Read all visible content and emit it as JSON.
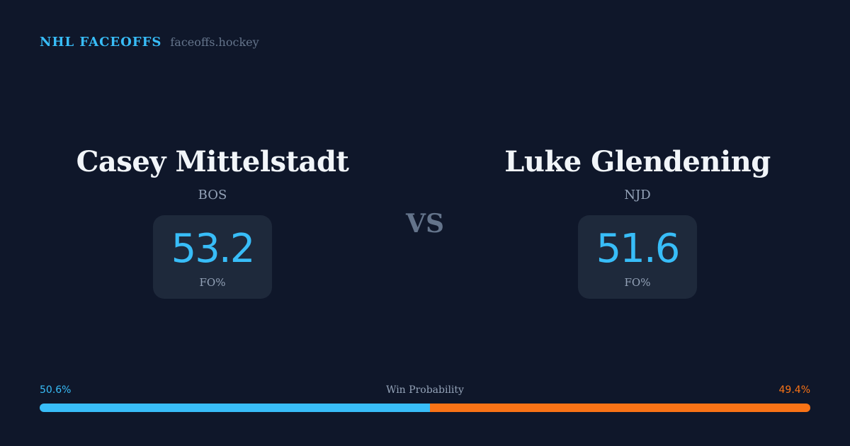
{
  "header": {
    "title": "NHL FACEOFFS",
    "domain": "faceoffs.hockey"
  },
  "players": [
    {
      "name": "Casey Mittelstadt",
      "team": "BOS",
      "fo_pct": "53.2",
      "fo_label": "FO%"
    },
    {
      "name": "Luke Glendening",
      "team": "NJD",
      "fo_pct": "51.6",
      "fo_label": "FO%"
    }
  ],
  "vs": "VS",
  "win_probability": {
    "label": "Win Probability",
    "left_label": "50.6%",
    "right_label": "49.4%",
    "left_value": 50.6,
    "right_value": 49.4,
    "left_color": "#38bdf8",
    "right_color": "#f97316"
  }
}
